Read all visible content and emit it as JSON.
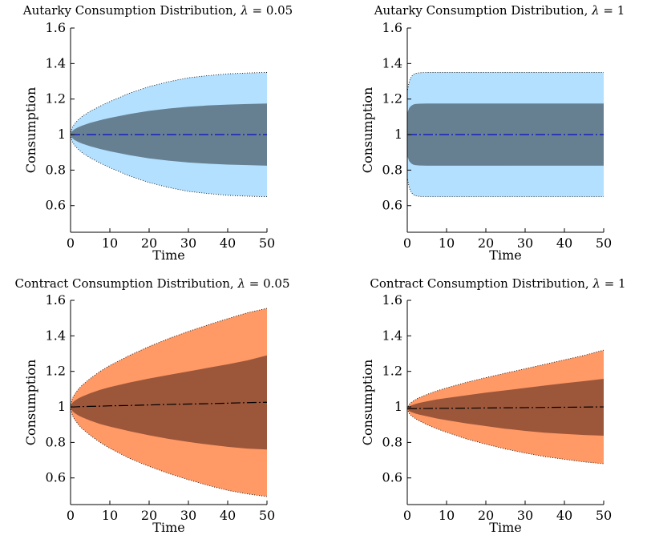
{
  "figure": {
    "background": "#ffffff"
  },
  "chart_data": [
    {
      "id": "autarky-005",
      "type": "area",
      "title_prefix": "Autarky Consumption Distribution, ",
      "title_symbol": "λ",
      "title_suffix": " = 0.05",
      "xlabel": "Time",
      "ylabel": "Consumption",
      "xlim": [
        0,
        50
      ],
      "ylim": [
        0.45,
        1.6
      ],
      "xticks": [
        0,
        10,
        20,
        30,
        40,
        50
      ],
      "yticks": [
        0.6,
        0.8,
        1,
        1.2,
        1.4,
        1.6
      ],
      "ytick_labels": [
        "0.6",
        "0.8",
        "1",
        "1.2",
        "1.4",
        "1.6"
      ],
      "grid": false,
      "colors": {
        "outer": "#b3e0ff",
        "inner": "#668092",
        "line": "#0000cc"
      },
      "x": [
        0,
        0.5,
        1,
        2,
        3,
        5,
        7.5,
        10,
        15,
        20,
        25,
        30,
        35,
        40,
        45,
        50
      ],
      "outer_upper": [
        1,
        1.043,
        1.06,
        1.084,
        1.103,
        1.131,
        1.16,
        1.186,
        1.233,
        1.27,
        1.298,
        1.32,
        1.332,
        1.342,
        1.347,
        1.35
      ],
      "outer_lower": [
        1,
        0.957,
        0.94,
        0.916,
        0.897,
        0.869,
        0.84,
        0.814,
        0.767,
        0.73,
        0.702,
        0.68,
        0.668,
        0.658,
        0.653,
        0.65
      ],
      "inner_upper": [
        1,
        1.021,
        1.03,
        1.042,
        1.051,
        1.066,
        1.081,
        1.094,
        1.116,
        1.134,
        1.147,
        1.157,
        1.164,
        1.169,
        1.172,
        1.175
      ],
      "inner_lower": [
        1,
        0.979,
        0.97,
        0.958,
        0.949,
        0.934,
        0.919,
        0.906,
        0.884,
        0.866,
        0.853,
        0.843,
        0.836,
        0.831,
        0.828,
        0.825
      ],
      "median": [
        1,
        1,
        1,
        1,
        1,
        1,
        1,
        1,
        1,
        1,
        1,
        1,
        1,
        1,
        1,
        1
      ]
    },
    {
      "id": "autarky-1",
      "type": "area",
      "title_prefix": "Autarky Consumption Distribution, ",
      "title_symbol": "λ",
      "title_suffix": " = 1",
      "xlabel": "Time",
      "ylabel": "Consumption",
      "xlim": [
        0,
        50
      ],
      "ylim": [
        0.45,
        1.6
      ],
      "xticks": [
        0,
        10,
        20,
        30,
        40,
        50
      ],
      "yticks": [
        0.6,
        0.8,
        1,
        1.2,
        1.4,
        1.6
      ],
      "ytick_labels": [
        "0.6",
        "0.8",
        "1",
        "1.2",
        "1.4",
        "1.6"
      ],
      "grid": false,
      "colors": {
        "outer": "#b3e0ff",
        "inner": "#668092",
        "line": "#0000cc"
      },
      "x": [
        0,
        0.5,
        1,
        1.5,
        2,
        3,
        5,
        10,
        20,
        30,
        40,
        50
      ],
      "outer_upper": [
        1.24,
        1.3,
        1.325,
        1.338,
        1.344,
        1.348,
        1.35,
        1.35,
        1.35,
        1.35,
        1.35,
        1.35
      ],
      "outer_lower": [
        0.76,
        0.7,
        0.675,
        0.662,
        0.656,
        0.652,
        0.65,
        0.65,
        0.65,
        0.65,
        0.65,
        0.65
      ],
      "inner_upper": [
        1.12,
        1.15,
        1.162,
        1.169,
        1.172,
        1.174,
        1.175,
        1.175,
        1.175,
        1.175,
        1.175,
        1.175
      ],
      "inner_lower": [
        0.88,
        0.85,
        0.838,
        0.831,
        0.828,
        0.826,
        0.825,
        0.825,
        0.825,
        0.825,
        0.825,
        0.825
      ],
      "median": [
        1,
        1,
        1,
        1,
        1,
        1,
        1,
        1,
        1,
        1,
        1,
        1
      ]
    },
    {
      "id": "contract-005",
      "type": "area",
      "title_prefix": "Contract Consumption Distribution, ",
      "title_symbol": "λ",
      "title_suffix": " = 0.05",
      "xlabel": "Time",
      "ylabel": "Consumption",
      "xlim": [
        0,
        50
      ],
      "ylim": [
        0.45,
        1.6
      ],
      "xticks": [
        0,
        10,
        20,
        30,
        40,
        50
      ],
      "yticks": [
        0.6,
        0.8,
        1,
        1.2,
        1.4,
        1.6
      ],
      "ytick_labels": [
        "0.6",
        "0.8",
        "1",
        "1.2",
        "1.4",
        "1.6"
      ],
      "grid": false,
      "colors": {
        "outer": "#ff9966",
        "inner": "#9c563a",
        "line": "#000000"
      },
      "x": [
        0,
        0.5,
        1,
        2,
        3,
        5,
        7.5,
        10,
        15,
        20,
        25,
        30,
        35,
        40,
        45,
        50
      ],
      "outer_upper": [
        1,
        1.05,
        1.07,
        1.1,
        1.123,
        1.16,
        1.2,
        1.233,
        1.29,
        1.34,
        1.385,
        1.425,
        1.462,
        1.497,
        1.53,
        1.555
      ],
      "outer_lower": [
        1,
        0.95,
        0.93,
        0.9,
        0.877,
        0.84,
        0.8,
        0.767,
        0.71,
        0.665,
        0.625,
        0.59,
        0.558,
        0.53,
        0.51,
        0.495
      ],
      "inner_upper": [
        1,
        1.024,
        1.034,
        1.048,
        1.059,
        1.077,
        1.096,
        1.111,
        1.137,
        1.16,
        1.18,
        1.2,
        1.22,
        1.24,
        1.262,
        1.29
      ],
      "inner_lower": [
        1,
        0.976,
        0.966,
        0.952,
        0.941,
        0.923,
        0.904,
        0.889,
        0.863,
        0.84,
        0.82,
        0.803,
        0.788,
        0.775,
        0.765,
        0.76
      ],
      "median": [
        1,
        1,
        1,
        1.001,
        1.002,
        1.003,
        1.004,
        1.006,
        1.008,
        1.011,
        1.014,
        1.016,
        1.018,
        1.021,
        1.024,
        1.026
      ]
    },
    {
      "id": "contract-1",
      "type": "area",
      "title_prefix": "Contract Consumption Distribution, ",
      "title_symbol": "λ",
      "title_suffix": " = 1",
      "xlabel": "Time",
      "ylabel": "Consumption",
      "xlim": [
        0,
        50
      ],
      "ylim": [
        0.45,
        1.6
      ],
      "xticks": [
        0,
        10,
        20,
        30,
        40,
        50
      ],
      "yticks": [
        0.6,
        0.8,
        1,
        1.2,
        1.4,
        1.6
      ],
      "ytick_labels": [
        "0.6",
        "0.8",
        "1",
        "1.2",
        "1.4",
        "1.6"
      ],
      "grid": false,
      "colors": {
        "outer": "#ff9966",
        "inner": "#9c563a",
        "line": "#000000"
      },
      "x": [
        0,
        0.5,
        1,
        2,
        3,
        5,
        7.5,
        10,
        15,
        20,
        25,
        30,
        35,
        40,
        45,
        50
      ],
      "outer_upper": [
        0.99,
        1.015,
        1.025,
        1.04,
        1.052,
        1.07,
        1.09,
        1.107,
        1.138,
        1.165,
        1.19,
        1.215,
        1.24,
        1.265,
        1.29,
        1.32
      ],
      "outer_lower": [
        0.99,
        0.962,
        0.951,
        0.935,
        0.922,
        0.9,
        0.877,
        0.857,
        0.82,
        0.79,
        0.763,
        0.74,
        0.72,
        0.705,
        0.69,
        0.68
      ],
      "inner_upper": [
        0.99,
        1.003,
        1.008,
        1.016,
        1.022,
        1.031,
        1.042,
        1.05,
        1.065,
        1.08,
        1.093,
        1.107,
        1.12,
        1.133,
        1.145,
        1.158
      ],
      "inner_lower": [
        0.99,
        0.976,
        0.971,
        0.963,
        0.957,
        0.947,
        0.935,
        0.925,
        0.907,
        0.892,
        0.877,
        0.865,
        0.855,
        0.848,
        0.842,
        0.838
      ],
      "median": [
        0.99,
        0.99,
        0.99,
        0.99,
        0.991,
        0.991,
        0.992,
        0.992,
        0.993,
        0.994,
        0.995,
        0.996,
        0.997,
        0.998,
        0.999,
        1.0
      ]
    }
  ]
}
